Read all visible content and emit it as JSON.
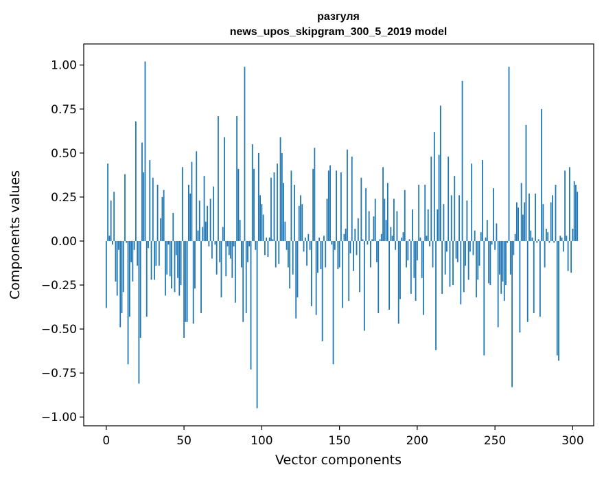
{
  "chart_data": {
    "type": "bar",
    "title_lines": [
      "разгуля",
      "news_upos_skipgram_300_5_2019 model"
    ],
    "xlabel": "Vector components",
    "ylabel": "Components values",
    "xlim": [
      -14.5,
      313.5
    ],
    "ylim": [
      -1.05,
      1.12
    ],
    "x_ticks": [
      0,
      50,
      100,
      150,
      200,
      250,
      300
    ],
    "y_ticks": [
      -1.0,
      -0.75,
      -0.5,
      -0.25,
      0.0,
      0.25,
      0.5,
      0.75,
      1.0
    ],
    "x_tick_labels": [
      "0",
      "50",
      "100",
      "150",
      "200",
      "250",
      "300"
    ],
    "y_tick_labels": [
      "−1.00",
      "−0.75",
      "−0.50",
      "−0.25",
      "0.00",
      "0.25",
      "0.50",
      "0.75",
      "1.00"
    ],
    "bar_color": "#1f77b4",
    "grid": false,
    "legend": "none",
    "values": [
      -0.38,
      0.44,
      0.03,
      0.23,
      -0.02,
      0.28,
      -0.23,
      -0.31,
      -0.05,
      -0.49,
      -0.41,
      -0.29,
      0.38,
      -0.01,
      -0.7,
      -0.43,
      -0.12,
      -0.23,
      -0.05,
      0.68,
      -0.14,
      -0.81,
      -0.55,
      0.56,
      0.39,
      1.02,
      -0.43,
      -0.04,
      0.46,
      -0.22,
      0.36,
      -0.22,
      -0.14,
      0.32,
      -0.14,
      0.13,
      0.25,
      0.29,
      -0.31,
      -0.19,
      -0.02,
      -0.2,
      -0.27,
      0.16,
      -0.29,
      -0.08,
      -0.21,
      -0.31,
      -0.25,
      0.42,
      -0.55,
      -0.46,
      -0.46,
      0.32,
      0.27,
      0.45,
      -0.47,
      -0.27,
      0.51,
      0.06,
      0.23,
      -0.41,
      0.08,
      0.37,
      0.11,
      0.2,
      -0.03,
      0.24,
      -0.1,
      0.31,
      -0.02,
      -0.19,
      0.71,
      -0.12,
      -0.32,
      0.08,
      0.59,
      -0.2,
      -0.03,
      -0.08,
      -0.1,
      -0.21,
      -0.03,
      -0.35,
      0.71,
      0.41,
      0.12,
      -0.15,
      -0.46,
      0.99,
      -0.41,
      -0.12,
      -0.03,
      -0.73,
      0.55,
      0.41,
      -0.05,
      -0.95,
      0.5,
      0.26,
      0.21,
      0.15,
      -0.08,
      0.02,
      -0.09,
      0.02,
      0.36,
      0.01,
      0.39,
      -0.15,
      0.44,
      -0.13,
      0.59,
      0.5,
      0.33,
      0.11,
      -0.05,
      -0.15,
      -0.27,
      0.4,
      -0.19,
      0.32,
      -0.44,
      -0.32,
      0.2,
      0.26,
      0.21,
      -0.06,
      0.02,
      -0.14,
      0.04,
      -0.05,
      -0.37,
      0.41,
      0.53,
      -0.42,
      -0.18,
      0.02,
      -0.16,
      -0.57,
      0.03,
      -0.15,
      0.24,
      0.4,
      0.43,
      -0.02,
      -0.7,
      -0.05,
      0.4,
      -0.16,
      -0.15,
      0.39,
      -0.38,
      0.04,
      0.07,
      0.52,
      -0.34,
      -0.07,
      0.48,
      -0.17,
      0.07,
      -0.08,
      0.13,
      -0.29,
      0.36,
      0.01,
      -0.51,
      0.3,
      -0.02,
      0.17,
      -0.15,
      0.01,
      0.14,
      0.24,
      -0.12,
      -0.41,
      0.01,
      0.04,
      0.42,
      0.24,
      0.12,
      0.33,
      -0.39,
      0.08,
      0.03,
      0.24,
      -0.05,
      0.17,
      -0.47,
      -0.33,
      0.02,
      0.05,
      0.29,
      -0.15,
      -0.11,
      0.01,
      -0.3,
      0.18,
      -0.21,
      -0.34,
      -0.11,
      0.32,
      0.02,
      -0.21,
      -0.42,
      0.32,
      0.03,
      0.18,
      -0.03,
      0.48,
      -0.15,
      0.62,
      -0.62,
      0.18,
      0.49,
      0.77,
      -0.3,
      0.21,
      -0.19,
      -0.06,
      0.48,
      -0.26,
      0.26,
      -0.25,
      0.37,
      -0.1,
      -0.12,
      0.26,
      -0.36,
      0.91,
      -0.29,
      -0.14,
      0.23,
      -0.22,
      -0.06,
      0.44,
      -0.08,
      0.06,
      -0.32,
      -0.22,
      -0.14,
      0.05,
      0.46,
      -0.65,
      0.02,
      0.12,
      -0.24,
      -0.25,
      -0.02,
      0.3,
      -0.05,
      0.1,
      -0.49,
      -0.19,
      -0.3,
      -0.23,
      -0.34,
      -0.25,
      -0.01,
      0.99,
      -0.19,
      -0.83,
      -0.08,
      0.04,
      0.22,
      0.19,
      -0.52,
      0.33,
      0.15,
      0.22,
      0.66,
      -0.46,
      0.27,
      0.06,
      0.02,
      -0.41,
      0.27,
      -0.01,
      0.01,
      -0.43,
      0.75,
      0.21,
      -0.15,
      0.07,
      0.05,
      -0.01,
      0.22,
      0.26,
      -0.01,
      0.32,
      -0.65,
      -0.68,
      0.03,
      0.02,
      -0.06,
      0.4,
      0.03,
      -0.17,
      0.42,
      -0.18,
      0.07,
      0.34,
      0.32,
      0.28
    ]
  }
}
